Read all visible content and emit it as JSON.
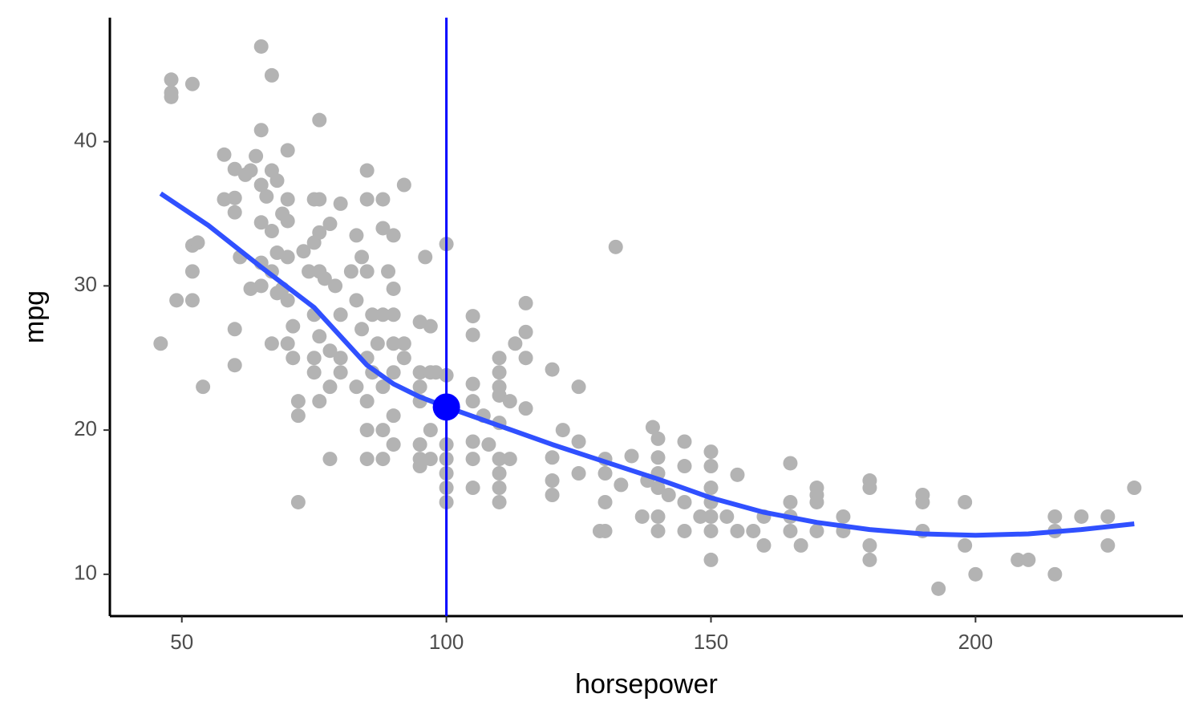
{
  "chart_data": {
    "type": "scatter",
    "x_label": "horsepower",
    "y_label": "mpg",
    "xlim": [
      36.4,
      239.2
    ],
    "ylim": [
      7.1,
      48.6
    ],
    "xticks": [
      50,
      100,
      150,
      200
    ],
    "yticks": [
      10,
      20,
      30,
      40
    ],
    "point_color": "#b3b3b3",
    "x": [
      46,
      48,
      48,
      48,
      52,
      49,
      52,
      52,
      52,
      53,
      54,
      58,
      58,
      60,
      60,
      60,
      61,
      60,
      60,
      62,
      63,
      63,
      64,
      65,
      65,
      65,
      65,
      65,
      65,
      66,
      67,
      67,
      67,
      67,
      67,
      68,
      68,
      68,
      69,
      69,
      70,
      70,
      70,
      70,
      70,
      70,
      71,
      71,
      72,
      72,
      72,
      73,
      74,
      75,
      75,
      75,
      75,
      75,
      76,
      76,
      76,
      76,
      76,
      76,
      77,
      78,
      78,
      78,
      78,
      79,
      80,
      80,
      80,
      80,
      82,
      83,
      83,
      83,
      84,
      84,
      85,
      85,
      85,
      85,
      85,
      85,
      85,
      86,
      86,
      87,
      88,
      88,
      88,
      88,
      88,
      88,
      89,
      90,
      90,
      90,
      90,
      90,
      90,
      90,
      92,
      92,
      92,
      95,
      95,
      95,
      95,
      95,
      95,
      95,
      96,
      97,
      97,
      97,
      97,
      98,
      100,
      100,
      100,
      100,
      100,
      100,
      100,
      100,
      105,
      105,
      105,
      105,
      105,
      105,
      105,
      107,
      108,
      110,
      110,
      110,
      110,
      110,
      110,
      110,
      110,
      110,
      112,
      112,
      113,
      115,
      115,
      115,
      115,
      120,
      120,
      120,
      120,
      122,
      125,
      125,
      125,
      129,
      130,
      130,
      130,
      130,
      132,
      133,
      135,
      137,
      138,
      139,
      140,
      140,
      140,
      140,
      140,
      140,
      142,
      145,
      145,
      145,
      145,
      148,
      150,
      150,
      150,
      150,
      150,
      150,
      150,
      153,
      155,
      155,
      158,
      160,
      160,
      165,
      165,
      165,
      165,
      167,
      170,
      170,
      170,
      170,
      175,
      175,
      180,
      180,
      180,
      180,
      190,
      190,
      190,
      193,
      198,
      198,
      200,
      208,
      210,
      215,
      215,
      215,
      220,
      225,
      225,
      230
    ],
    "values": [
      26,
      44.3,
      43.4,
      43.1,
      44,
      29,
      29,
      31,
      32.8,
      33,
      23,
      39.1,
      36,
      38.1,
      36.1,
      35.1,
      32,
      27,
      24.5,
      37.7,
      38,
      29.8,
      39,
      46.6,
      40.8,
      37,
      34.4,
      31.6,
      30,
      36.2,
      44.6,
      38,
      33.8,
      31,
      26,
      37.3,
      32.3,
      29.5,
      35,
      29.8,
      39.4,
      36,
      34.5,
      32,
      29,
      26,
      27.2,
      25,
      22,
      21,
      15,
      32.4,
      31,
      36,
      33,
      28,
      25,
      24,
      41.5,
      36,
      33.7,
      31,
      26.5,
      22,
      30.5,
      34.3,
      25.5,
      23,
      18,
      30,
      35.7,
      28,
      25,
      24,
      31,
      33.5,
      29,
      23,
      32,
      27,
      38,
      36,
      31,
      25,
      22,
      20,
      18,
      28,
      24,
      26,
      36,
      34,
      28,
      23,
      20,
      18,
      31,
      33.5,
      29.8,
      28,
      26,
      24,
      21,
      19,
      37,
      26,
      25,
      27.5,
      24,
      23,
      22,
      19,
      18,
      17.5,
      32,
      27.2,
      24,
      20,
      18,
      24,
      32.9,
      23.8,
      22,
      19,
      18,
      17,
      16,
      15,
      27.9,
      26.6,
      23.2,
      22,
      19.2,
      18,
      16,
      21,
      19,
      25,
      24,
      23,
      22.4,
      20.5,
      18,
      17,
      16,
      15,
      22,
      18,
      26,
      28.8,
      26.8,
      25,
      21.5,
      24.2,
      18.1,
      16.5,
      15.5,
      20,
      23,
      19.2,
      17,
      13,
      18,
      17,
      15,
      13,
      32.7,
      16.2,
      18.2,
      14,
      16.5,
      20.2,
      19.4,
      18.1,
      17,
      16,
      14,
      13,
      15.5,
      19.2,
      17.5,
      15,
      13,
      14,
      18.5,
      17.5,
      16,
      15,
      14,
      13,
      11,
      14,
      16.9,
      13,
      13,
      14,
      12,
      17.7,
      15,
      14,
      13,
      12,
      16,
      15.5,
      15,
      13,
      14,
      13,
      16.5,
      16,
      12,
      11,
      15.5,
      15,
      13,
      9,
      15,
      12,
      10,
      11,
      11,
      14,
      13,
      10,
      14,
      14,
      12,
      16
    ],
    "smooth": {
      "color": "#3050ff",
      "x": [
        46,
        55,
        65,
        75,
        80,
        85,
        90,
        95,
        100,
        110,
        120,
        130,
        140,
        150,
        160,
        170,
        180,
        190,
        200,
        210,
        220,
        230
      ],
      "values": [
        36.4,
        34.2,
        31.3,
        28.5,
        26.5,
        24.5,
        23.2,
        22.3,
        21.6,
        20.3,
        19,
        17.8,
        16.6,
        15.3,
        14.3,
        13.6,
        13.1,
        12.8,
        12.7,
        12.8,
        13.1,
        13.5
      ]
    },
    "vline": {
      "x": 100,
      "color": "#0000ff"
    },
    "highlight": {
      "x": 100,
      "y": 21.6,
      "color": "#0000ff"
    }
  }
}
